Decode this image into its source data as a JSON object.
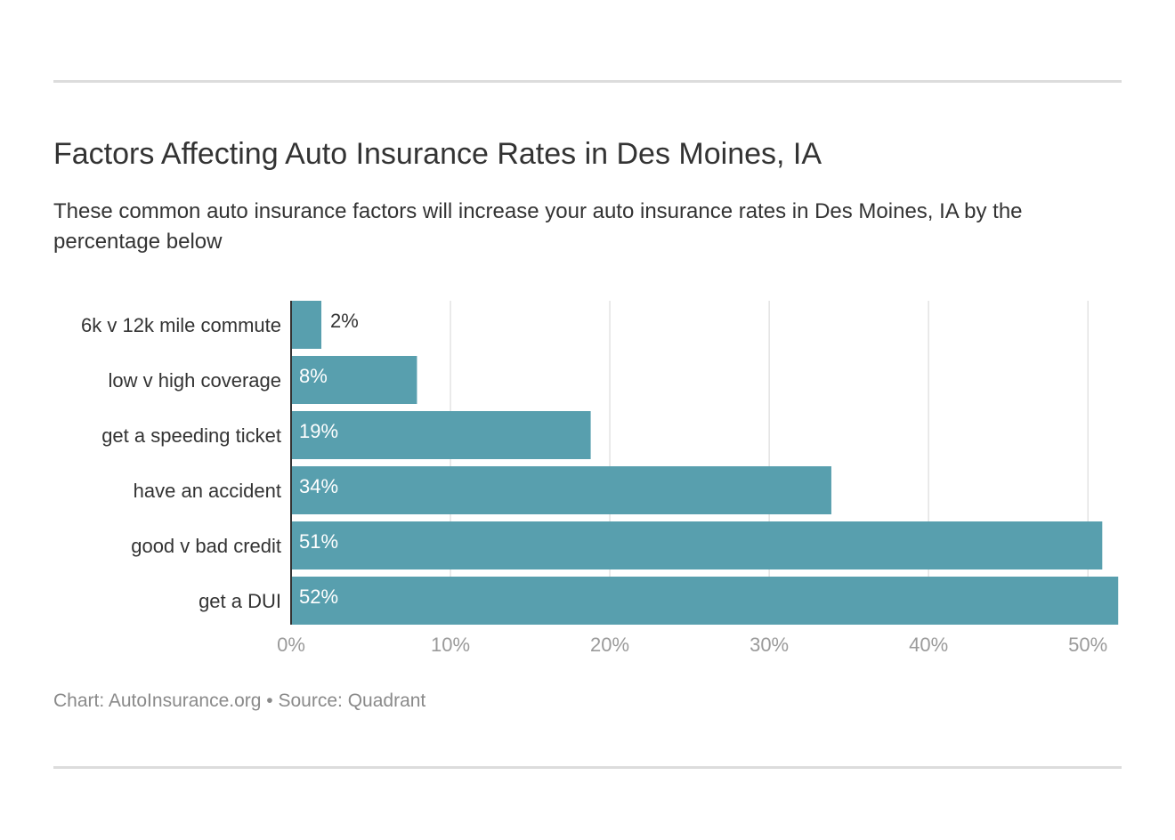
{
  "header": {
    "title": "Factors Affecting Auto Insurance Rates in Des Moines, IA",
    "subtitle": "These common auto insurance factors will increase your auto insurance rates in Des Moines, IA by the percentage below"
  },
  "footer": {
    "credit": "Chart: AutoInsurance.org • Source: Quadrant"
  },
  "colors": {
    "bar": "#589fae",
    "grid": "#e3e3e3",
    "axis": "#333333",
    "tick_text": "#9a9a9a",
    "category_text": "#333333"
  },
  "chart_data": {
    "type": "bar",
    "orientation": "horizontal",
    "categories": [
      "6k v 12k mile commute",
      "low v high coverage",
      "get a speeding ticket",
      "have an accident",
      "good v bad credit",
      "get a DUI"
    ],
    "values": [
      1.9,
      7.9,
      18.8,
      33.9,
      50.9,
      51.9
    ],
    "value_labels": [
      "2%",
      "8%",
      "19%",
      "34%",
      "51%",
      "52%"
    ],
    "xlim": [
      0,
      52
    ],
    "xticks": [
      0,
      10,
      20,
      30,
      40,
      50
    ],
    "xtick_labels": [
      "0%",
      "10%",
      "20%",
      "30%",
      "40%",
      "50%"
    ],
    "grid": true,
    "legend": "none"
  }
}
